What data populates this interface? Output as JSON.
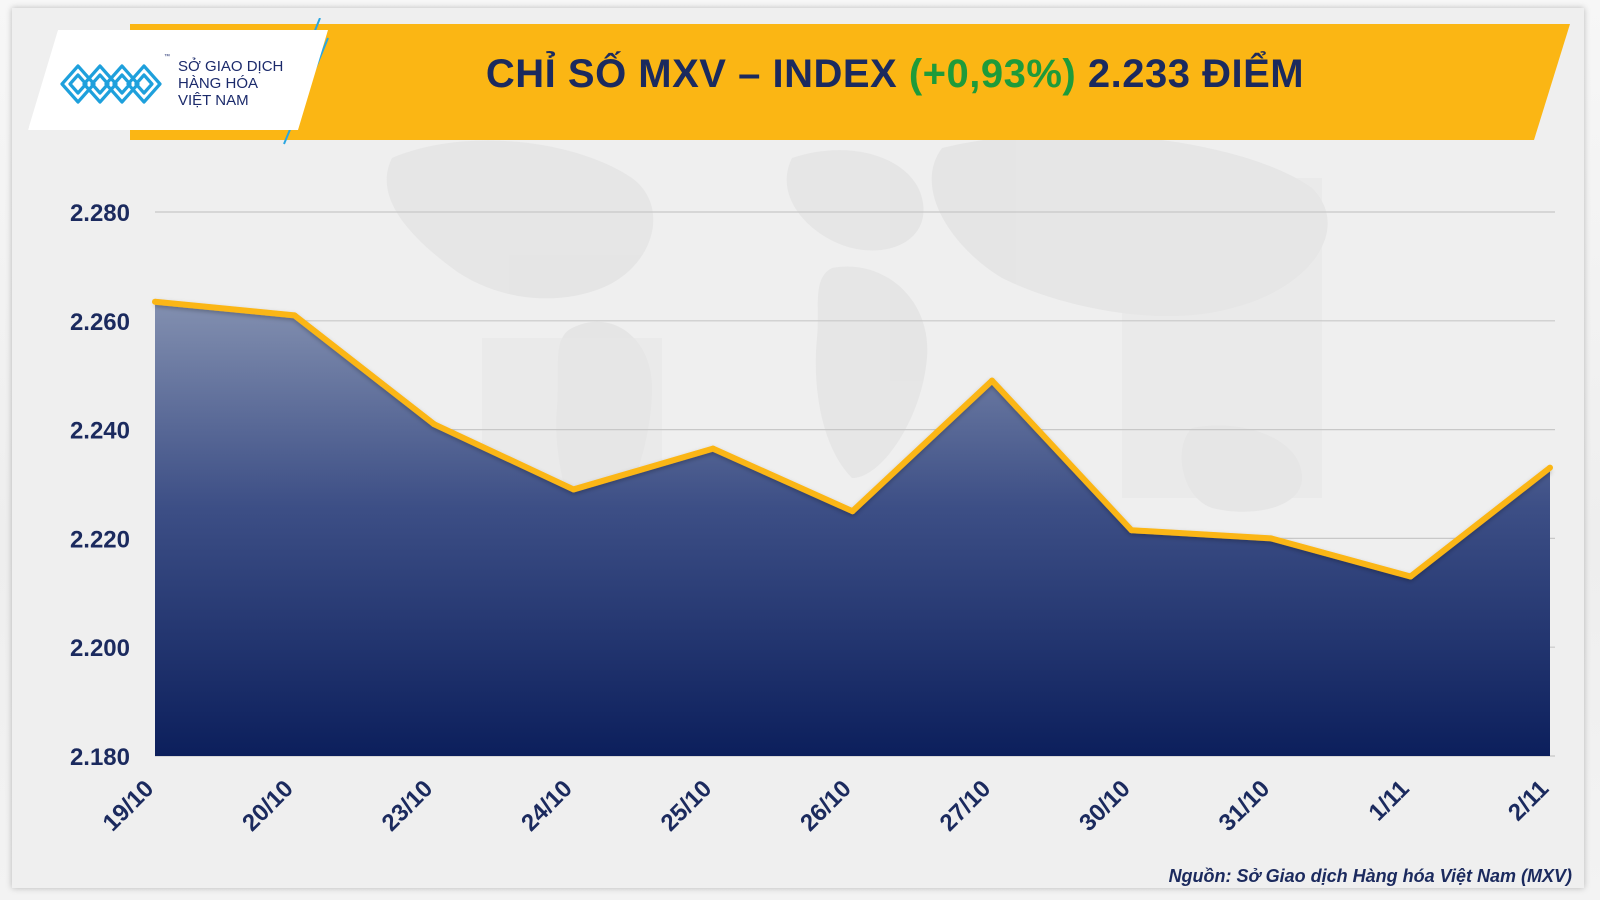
{
  "header": {
    "logo": {
      "line1": "SỞ GIAO DỊCH",
      "line2": "HÀNG HÓA",
      "line3": "VIỆT NAM",
      "tm": "™",
      "icon": "mxv-logo-icon"
    },
    "title_main": "CHỈ SỐ MXV – INDEX",
    "title_change": "(+0,93%)",
    "title_value": "2.233 ĐIỂM"
  },
  "footer": {
    "source": "Nguồn: Sở Giao dịch Hàng hóa Việt Nam (MXV)"
  },
  "colors": {
    "banner": "#fbb614",
    "title": "#1b2a5e",
    "change_positive": "#1e9b3a",
    "line": "#fbb614",
    "area_top": "#8390b0",
    "area_bottom": "#0c1f5c",
    "axis_text": "#1b2a5e"
  },
  "chart_data": {
    "type": "area",
    "title": "CHỈ SỐ MXV – INDEX (+0,93%) 2.233 ĐIỂM",
    "categories": [
      "19/10",
      "20/10",
      "23/10",
      "24/10",
      "25/10",
      "26/10",
      "27/10",
      "30/10",
      "31/10",
      "1/11",
      "2/11"
    ],
    "series": [
      {
        "values": [
          2263.5,
          2261,
          2241,
          2229,
          2236.5,
          2225,
          2249,
          2221.5,
          2220,
          2213,
          2233
        ]
      }
    ],
    "y_ticks": [
      "2.180",
      "2.200",
      "2.220",
      "2.240",
      "2.260",
      "2.280"
    ],
    "y_tick_values": [
      2180,
      2200,
      2220,
      2240,
      2260,
      2280
    ],
    "ylim": [
      2180,
      2280
    ],
    "grid": true,
    "legend": "none"
  }
}
